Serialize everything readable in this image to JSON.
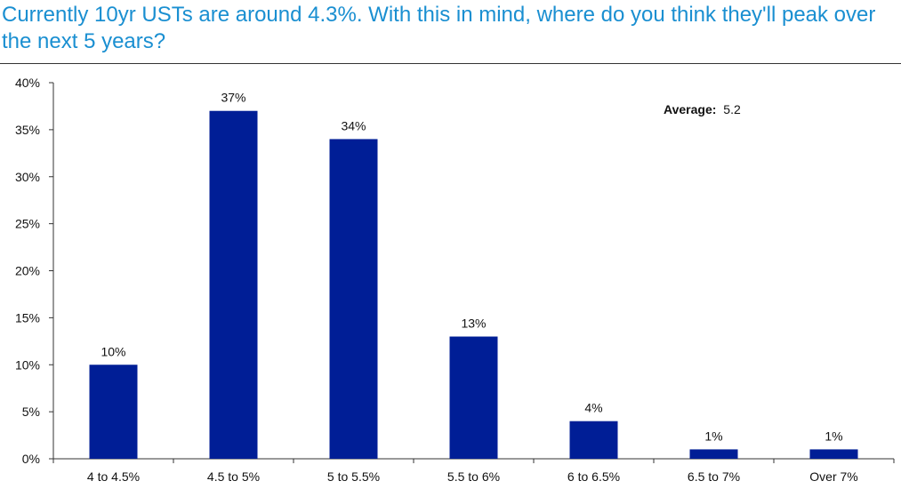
{
  "title": "Currently 10yr USTs are around 4.3%. With this in mind, where do you think they'll peak over the next 5 years?",
  "chart_data": {
    "type": "bar",
    "categories": [
      "4 to 4.5%",
      "4.5 to 5%",
      "5 to 5.5%",
      "5.5 to 6%",
      "6 to 6.5%",
      "6.5 to 7%",
      "Over 7%"
    ],
    "values": [
      10,
      37,
      34,
      13,
      4,
      1,
      1
    ],
    "data_labels": [
      "10%",
      "37%",
      "34%",
      "13%",
      "4%",
      "1%",
      "1%"
    ],
    "ylim": [
      0,
      40
    ],
    "yticks": [
      0,
      5,
      10,
      15,
      20,
      25,
      30,
      35,
      40
    ],
    "ytick_labels": [
      "0%",
      "5%",
      "10%",
      "15%",
      "20%",
      "25%",
      "30%",
      "35%",
      "40%"
    ],
    "xlabel": "",
    "ylabel": "",
    "grid": false,
    "bar_color": "#001e96",
    "annotation": {
      "label": "Average:",
      "value": "5.2"
    }
  }
}
